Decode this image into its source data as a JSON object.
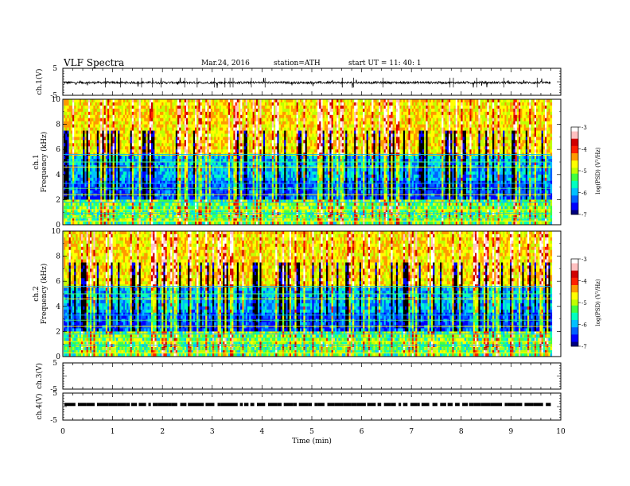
{
  "header": {
    "title": "VLF  Spectra",
    "date": "Mar.24, 2016",
    "station": "station=ATH",
    "start": "start  UT  =    11: 40: 1"
  },
  "chart_data": [
    {
      "type": "line",
      "panel": "ch1-waveform",
      "ylabel": "ch.1(V)",
      "ylim": [
        -5,
        5
      ],
      "yticks": [
        "5",
        "-5"
      ],
      "baseline": -0.3,
      "noise_amplitude": 0.4
    },
    {
      "type": "heatmap",
      "panel": "ch1-spectrogram",
      "ylabel": "Frequency  (kHz)",
      "channel_label": "ch.1",
      "ylim": [
        0,
        10
      ],
      "yticks": [
        "0",
        "2",
        "4",
        "6",
        "8",
        "10"
      ],
      "data_extent_min": [
        0,
        9.8
      ],
      "colorbar": {
        "label": "log(PSD) (V²/Hz)",
        "range": [
          -7,
          -3
        ],
        "ticks": [
          "-7",
          "-6",
          "-5",
          "-4",
          "-3"
        ]
      }
    },
    {
      "type": "heatmap",
      "panel": "ch2-spectrogram",
      "ylabel": "Frequency  (kHz)",
      "channel_label": "ch.2",
      "ylim": [
        0,
        10
      ],
      "yticks": [
        "0",
        "2",
        "4",
        "6",
        "8",
        "10"
      ],
      "data_extent_min": [
        0,
        9.8
      ],
      "colorbar": {
        "label": "log(PSD) (V²/Hz)",
        "range": [
          -7,
          -3
        ],
        "ticks": [
          "-7",
          "-6",
          "-5",
          "-4",
          "-3"
        ]
      }
    },
    {
      "type": "line",
      "panel": "ch3-waveform",
      "ylabel": "ch.3(V)",
      "ylim": [
        -5,
        5
      ],
      "yticks": [
        "5",
        "-5"
      ]
    },
    {
      "type": "line",
      "panel": "ch4-waveform",
      "ylabel": "ch.4(V)",
      "ylim": [
        -5,
        5
      ],
      "yticks": [
        "5",
        "-5"
      ],
      "baseline": 0.8
    }
  ],
  "xaxis": {
    "label": "Time  (min)",
    "xlim": [
      0,
      10
    ],
    "ticks": [
      "0",
      "1",
      "2",
      "3",
      "4",
      "5",
      "6",
      "7",
      "8",
      "9",
      "10"
    ]
  },
  "colors": {
    "colormap": [
      "#000080",
      "#0000ff",
      "#0060ff",
      "#00c0ff",
      "#00ffc0",
      "#40ff40",
      "#c0ff00",
      "#ffff00",
      "#ff9900",
      "#ff2000",
      "#d00000",
      "#ffc0c0",
      "#ffffff"
    ]
  }
}
